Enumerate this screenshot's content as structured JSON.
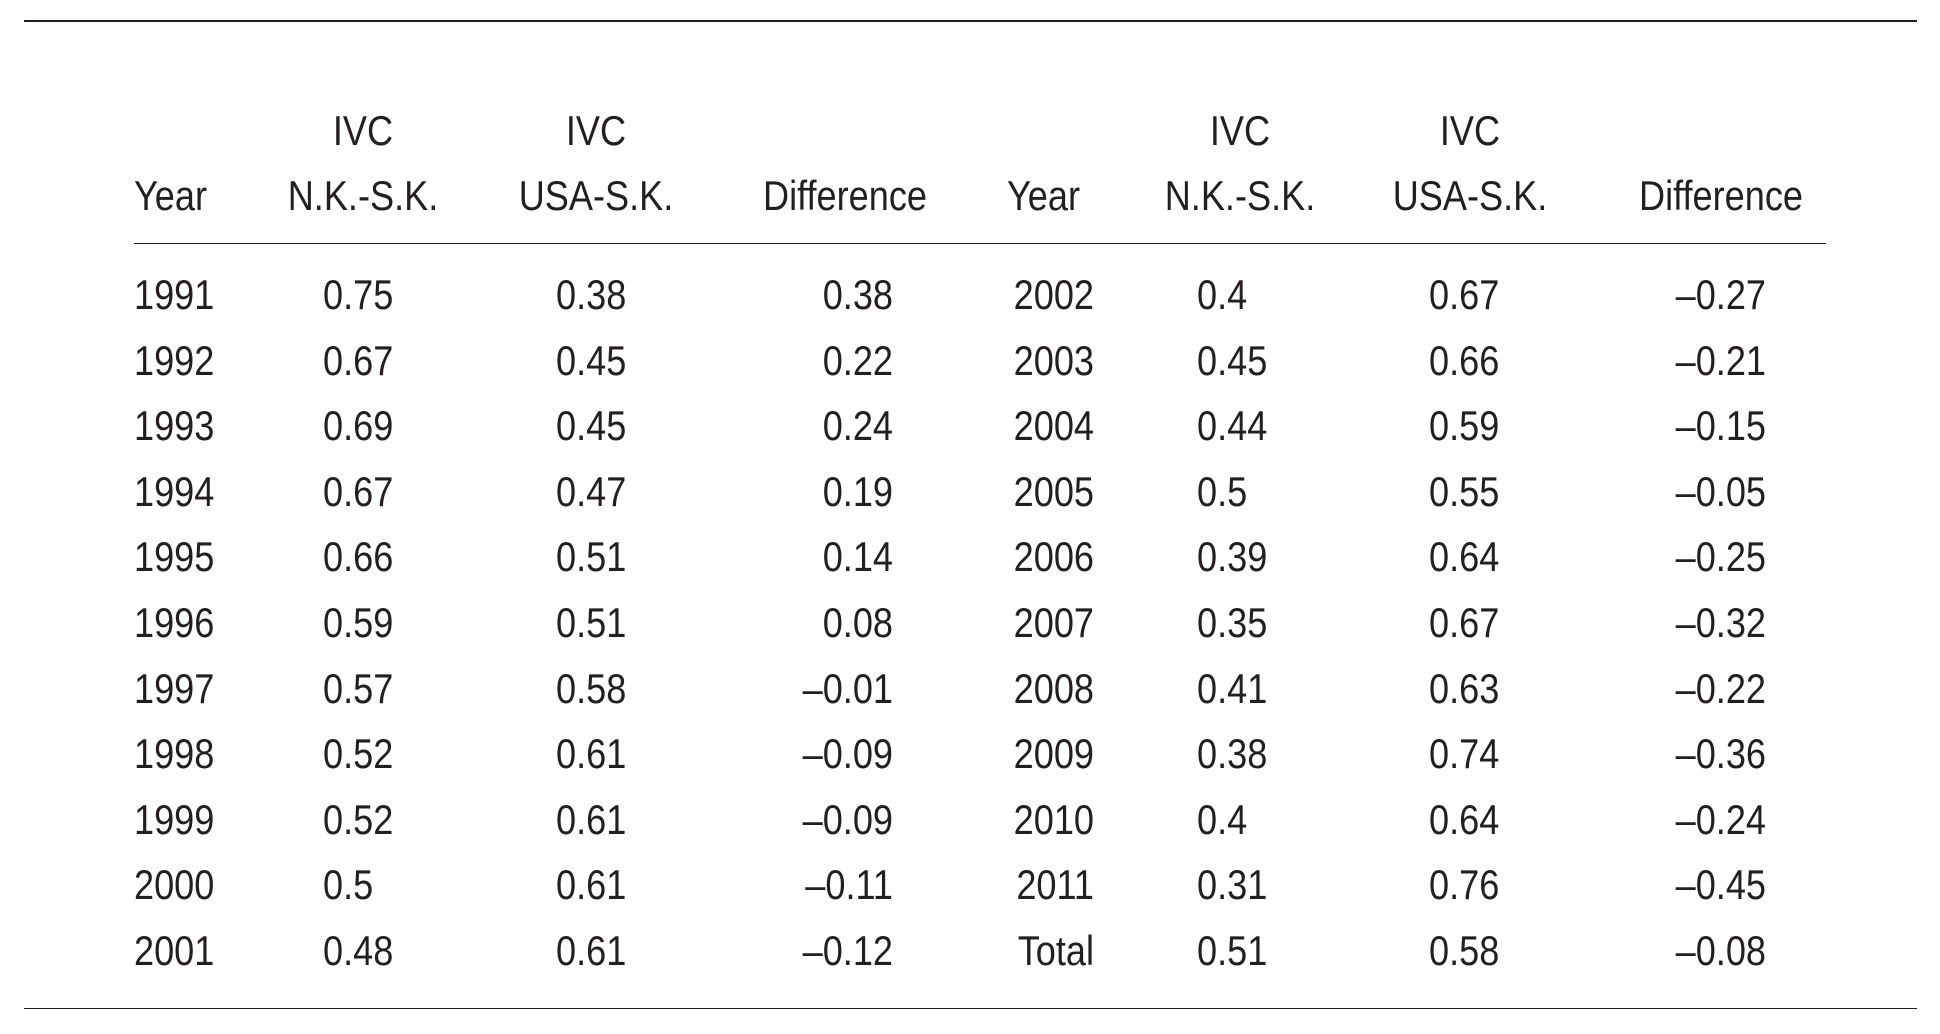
{
  "headers": {
    "year": "Year",
    "ivc_nk_top": "IVC",
    "ivc_nk_bottom": "N.K.-S.K.",
    "ivc_usa_top": "IVC",
    "ivc_usa_bottom": "USA-S.K.",
    "difference": "Difference"
  },
  "left_rows": [
    {
      "year": "1991",
      "nk": "0.75",
      "usa": "0.38",
      "diff": "0.38"
    },
    {
      "year": "1992",
      "nk": "0.67",
      "usa": "0.45",
      "diff": "0.22"
    },
    {
      "year": "1993",
      "nk": "0.69",
      "usa": "0.45",
      "diff": "0.24"
    },
    {
      "year": "1994",
      "nk": "0.67",
      "usa": "0.47",
      "diff": "0.19"
    },
    {
      "year": "1995",
      "nk": "0.66",
      "usa": "0.51",
      "diff": "0.14"
    },
    {
      "year": "1996",
      "nk": "0.59",
      "usa": "0.51",
      "diff": "0.08"
    },
    {
      "year": "1997",
      "nk": "0.57",
      "usa": "0.58",
      "diff": "–0.01"
    },
    {
      "year": "1998",
      "nk": "0.52",
      "usa": "0.61",
      "diff": "–0.09"
    },
    {
      "year": "1999",
      "nk": "0.52",
      "usa": "0.61",
      "diff": "–0.09"
    },
    {
      "year": "2000",
      "nk": "0.5",
      "usa": "0.61",
      "diff": "–0.11"
    },
    {
      "year": "2001",
      "nk": "0.48",
      "usa": "0.61",
      "diff": "–0.12"
    }
  ],
  "right_rows": [
    {
      "year": "2002",
      "nk": "0.4",
      "usa": "0.67",
      "diff": "–0.27"
    },
    {
      "year": "2003",
      "nk": "0.45",
      "usa": "0.66",
      "diff": "–0.21"
    },
    {
      "year": "2004",
      "nk": "0.44",
      "usa": "0.59",
      "diff": "–0.15"
    },
    {
      "year": "2005",
      "nk": "0.5",
      "usa": "0.55",
      "diff": "–0.05"
    },
    {
      "year": "2006",
      "nk": "0.39",
      "usa": "0.64",
      "diff": "–0.25"
    },
    {
      "year": "2007",
      "nk": "0.35",
      "usa": "0.67",
      "diff": "–0.32"
    },
    {
      "year": "2008",
      "nk": "0.41",
      "usa": "0.63",
      "diff": "–0.22"
    },
    {
      "year": "2009",
      "nk": "0.38",
      "usa": "0.74",
      "diff": "–0.36"
    },
    {
      "year": "2010",
      "nk": "0.4",
      "usa": "0.64",
      "diff": "–0.24"
    },
    {
      "year": "2011",
      "nk": "0.31",
      "usa": "0.76",
      "diff": "–0.45"
    },
    {
      "year": "Total",
      "nk": "0.51",
      "usa": "0.58",
      "diff": "–0.08"
    }
  ]
}
